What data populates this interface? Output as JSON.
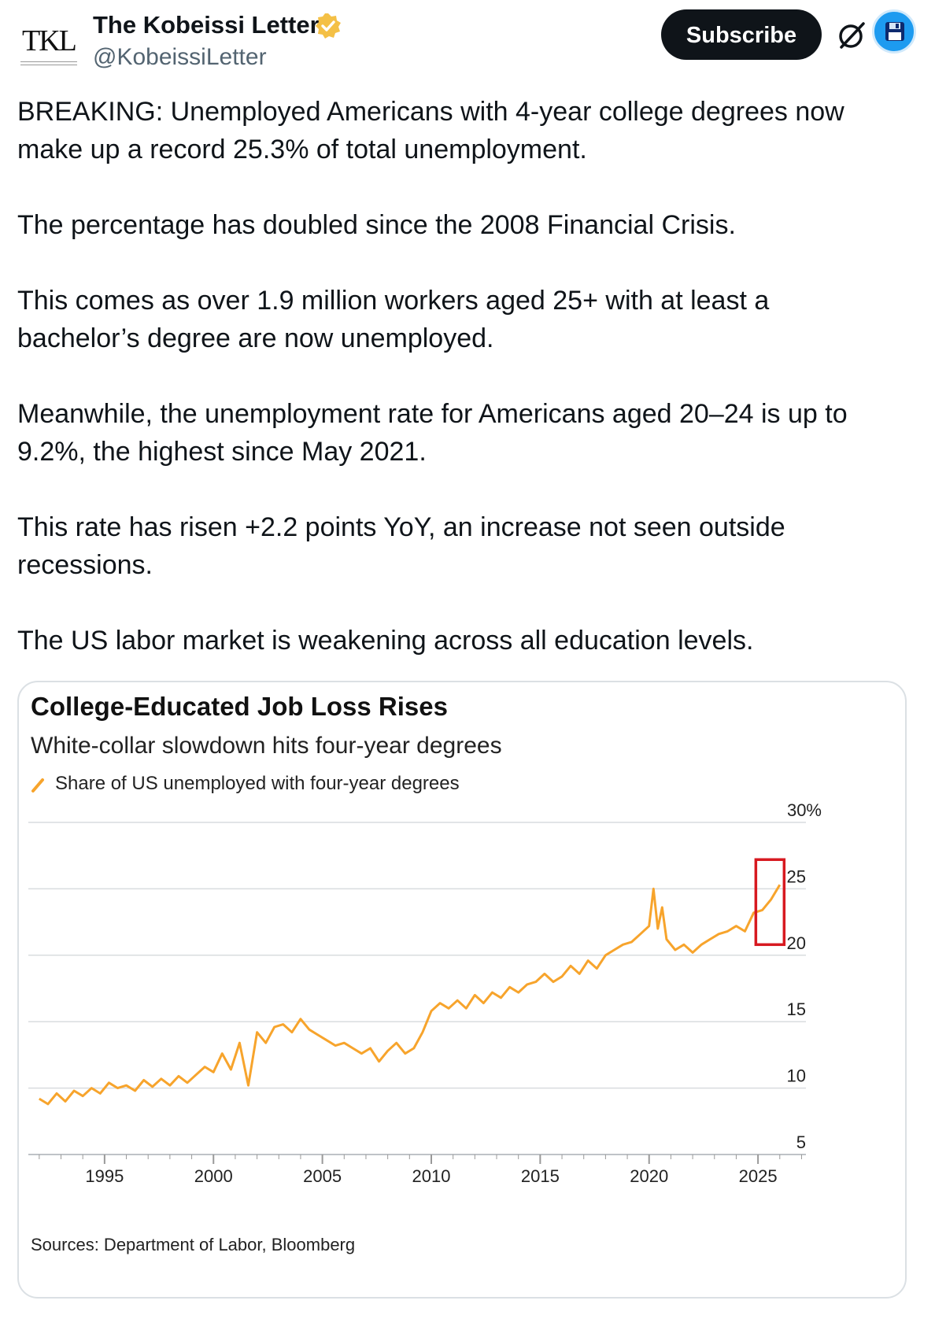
{
  "header": {
    "display_name": "The Kobeissi Letter",
    "handle": "@KobeissiLetter",
    "avatar_text": "TKL",
    "subscribe_label": "Subscribe",
    "verified_color": "#f4c046"
  },
  "tweet": {
    "paragraphs": [
      "BREAKING: Unemployed Americans with 4-year college degrees now make up a record 25.3% of total unemployment.",
      "The percentage has doubled since the 2008 Financial Crisis.",
      "This comes as over 1.9 million workers aged 25+ with at least a bachelor’s degree are now unemployed.",
      "Meanwhile, the unemployment rate for Americans aged 20–24 is up to 9.2%, the highest since May 2021.",
      "This rate has risen +2.2 points YoY, an increase not seen outside recessions.",
      "The US labor market is weakening across all education levels."
    ]
  },
  "chart_data": {
    "type": "line",
    "title": "College-Educated Job Loss Rises",
    "subtitle": "White-collar slowdown hits four-year degrees",
    "legend": "Share of US unemployed with four-year degrees",
    "source": "Sources: Department of Labor, Bloomberg",
    "y_ticks": [
      "30%",
      "25",
      "20",
      "15",
      "10",
      "5"
    ],
    "y_tick_values": [
      30,
      25,
      20,
      15,
      10,
      5
    ],
    "x_ticks": [
      "1995",
      "2000",
      "2005",
      "2010",
      "2015",
      "2020",
      "2025"
    ],
    "x_tick_values": [
      1995,
      2000,
      2005,
      2010,
      2015,
      2020,
      2025
    ],
    "xlim": [
      1991.5,
      2027.2
    ],
    "ylim": [
      5,
      30
    ],
    "grid": true,
    "line_color": "#f7a42c",
    "highlight_color": "#d71920",
    "highlight_box": {
      "x": [
        2024.9,
        2026.2
      ],
      "y": [
        20.8,
        27.2
      ]
    },
    "series": [
      {
        "x": [
          1992.0,
          1992.4,
          1992.8,
          1993.2,
          1993.6,
          1994.0,
          1994.4,
          1994.8,
          1995.2,
          1995.6,
          1996.0,
          1996.4,
          1996.8,
          1997.2,
          1997.6,
          1998.0,
          1998.4,
          1998.8,
          1999.2,
          1999.6,
          2000.0,
          2000.4,
          2000.8,
          2001.2,
          2001.6,
          2002.0,
          2002.4,
          2002.8,
          2003.2,
          2003.6,
          2004.0,
          2004.4,
          2004.8,
          2005.2,
          2005.6,
          2006.0,
          2006.4,
          2006.8,
          2007.2,
          2007.6,
          2008.0,
          2008.4,
          2008.8,
          2009.2,
          2009.6,
          2010.0,
          2010.4,
          2010.8,
          2011.2,
          2011.6,
          2012.0,
          2012.4,
          2012.8,
          2013.2,
          2013.6,
          2014.0,
          2014.4,
          2014.8,
          2015.2,
          2015.6,
          2016.0,
          2016.4,
          2016.8,
          2017.2,
          2017.6,
          2018.0,
          2018.4,
          2018.8,
          2019.2,
          2019.6,
          2020.0,
          2020.2,
          2020.4,
          2020.6,
          2020.8,
          2021.2,
          2021.6,
          2022.0,
          2022.4,
          2022.8,
          2023.2,
          2023.6,
          2024.0,
          2024.4,
          2024.8,
          2025.2,
          2025.6,
          2026.0
        ],
        "values": [
          9.2,
          8.8,
          9.6,
          9.0,
          9.8,
          9.4,
          10.0,
          9.6,
          10.4,
          10.0,
          10.2,
          9.8,
          10.6,
          10.1,
          10.7,
          10.2,
          10.9,
          10.4,
          11.0,
          11.6,
          11.2,
          12.6,
          11.4,
          13.4,
          10.2,
          14.2,
          13.4,
          14.6,
          14.8,
          14.2,
          15.2,
          14.4,
          14.0,
          13.6,
          13.2,
          13.4,
          13.0,
          12.6,
          13.0,
          12.0,
          12.8,
          13.4,
          12.6,
          13.0,
          14.2,
          15.8,
          16.4,
          16.0,
          16.6,
          16.0,
          17.0,
          16.4,
          17.2,
          16.8,
          17.6,
          17.2,
          17.8,
          18.0,
          18.6,
          18.0,
          18.4,
          19.2,
          18.6,
          19.6,
          19.0,
          20.0,
          20.4,
          20.8,
          21.0,
          21.6,
          22.2,
          25.0,
          22.0,
          23.6,
          21.2,
          20.4,
          20.8,
          20.2,
          20.8,
          21.2,
          21.6,
          21.8,
          22.2,
          21.8,
          23.2,
          23.4,
          24.2,
          25.3
        ]
      }
    ]
  }
}
